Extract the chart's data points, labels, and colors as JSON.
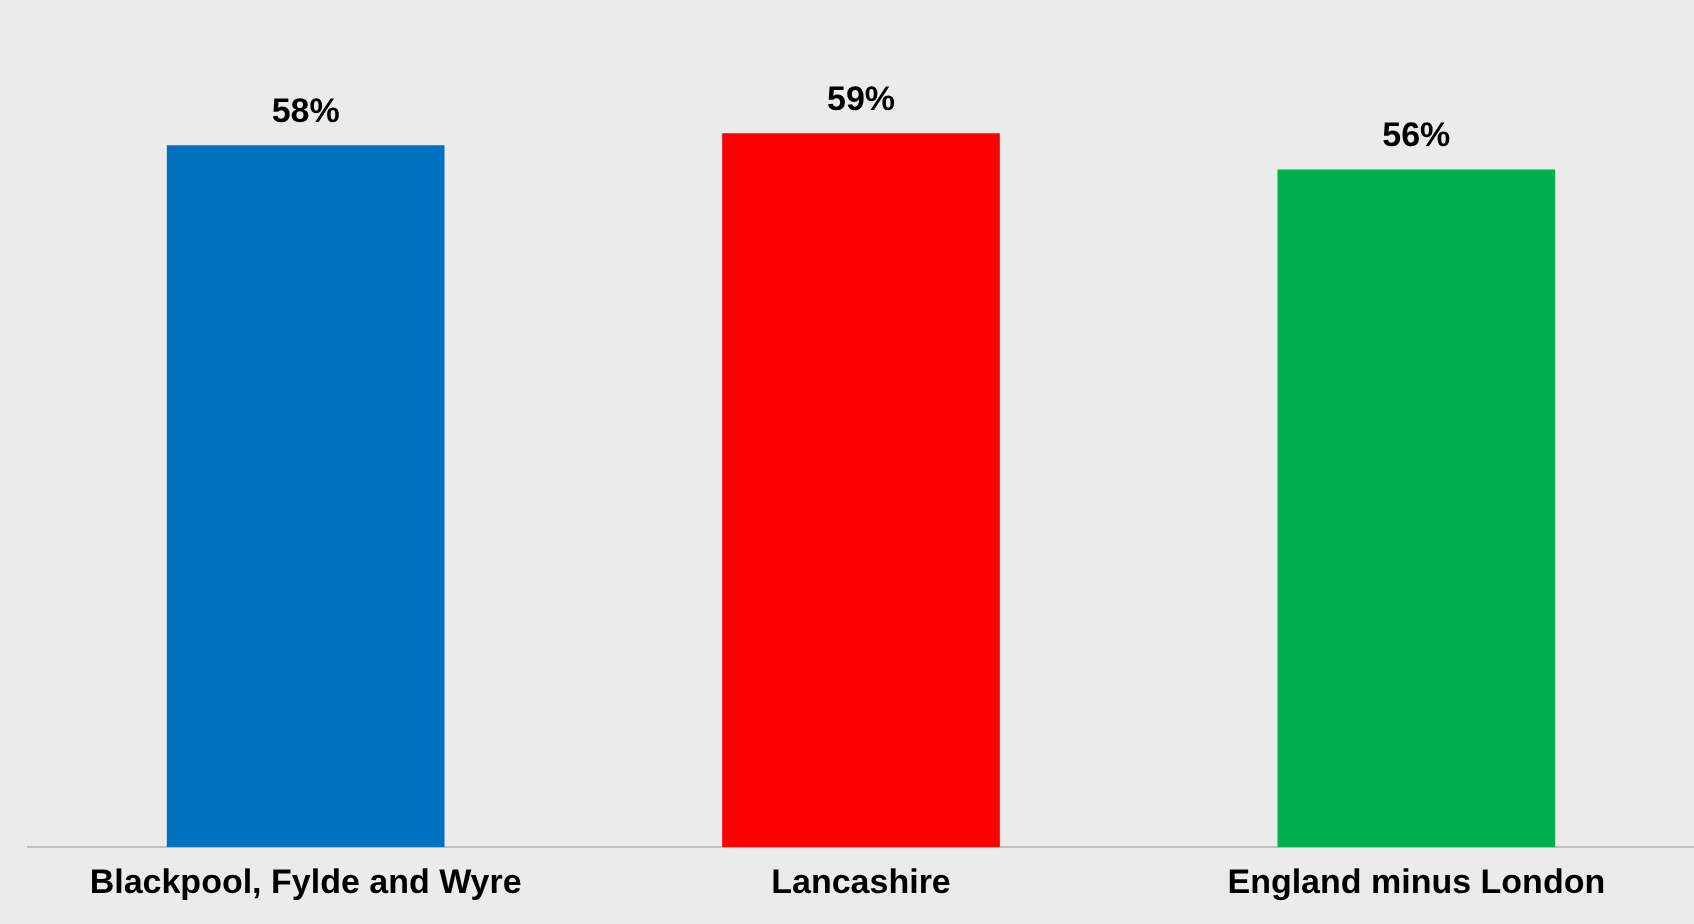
{
  "chart_data": {
    "type": "bar",
    "categories": [
      "Blackpool, Fylde and Wyre",
      "Lancashire",
      "England minus London"
    ],
    "values": [
      58,
      59,
      56
    ],
    "colors": [
      "#0070c0",
      "#ff0000",
      "#00b050"
    ],
    "data_labels": true,
    "value_labels": [
      "58%",
      "59%",
      "56%"
    ],
    "tick_labels": "x"
  }
}
